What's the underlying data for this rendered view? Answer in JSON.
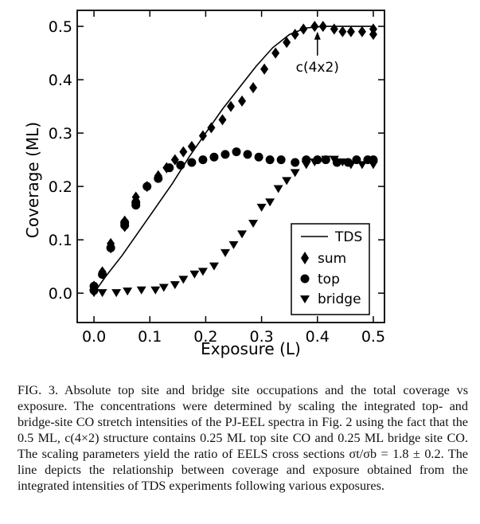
{
  "chart_data": {
    "type": "scatter",
    "title": "",
    "xlabel": "Exposure (L)",
    "ylabel": "Coverage (ML)",
    "xlim": [
      -0.03,
      0.52
    ],
    "ylim": [
      -0.055,
      0.53
    ],
    "xticks": [
      0.0,
      0.1,
      0.2,
      0.3,
      0.4,
      0.5
    ],
    "xtick_labels": [
      "0.0",
      "0.1",
      "0.2",
      "0.3",
      "0.4",
      "0.5"
    ],
    "yticks": [
      0.0,
      0.1,
      0.2,
      0.3,
      0.4,
      0.5
    ],
    "ytick_labels": [
      "0.0",
      "0.1",
      "0.2",
      "0.3",
      "0.4",
      "0.5"
    ],
    "grid": false,
    "legend_position": "bottom-right",
    "series": [
      {
        "name": "TDS",
        "kind": "line",
        "x": [
          0.0,
          0.02,
          0.05,
          0.08,
          0.11,
          0.14,
          0.17,
          0.2,
          0.23,
          0.26,
          0.29,
          0.32,
          0.35,
          0.38,
          0.41,
          0.44,
          0.47,
          0.5
        ],
        "y": [
          0.0,
          0.03,
          0.07,
          0.115,
          0.16,
          0.205,
          0.255,
          0.3,
          0.345,
          0.385,
          0.425,
          0.46,
          0.485,
          0.497,
          0.5,
          0.5,
          0.5,
          0.5
        ]
      },
      {
        "name": "sum",
        "kind": "diamond",
        "x": [
          0.0,
          0.0,
          0.015,
          0.03,
          0.03,
          0.055,
          0.055,
          0.075,
          0.075,
          0.095,
          0.115,
          0.13,
          0.145,
          0.16,
          0.175,
          0.195,
          0.21,
          0.23,
          0.245,
          0.265,
          0.285,
          0.305,
          0.325,
          0.345,
          0.36,
          0.375,
          0.395,
          0.41,
          0.43,
          0.445,
          0.46,
          0.48,
          0.5,
          0.5
        ],
        "y": [
          0.005,
          0.013,
          0.04,
          0.085,
          0.093,
          0.125,
          0.135,
          0.17,
          0.18,
          0.2,
          0.22,
          0.235,
          0.25,
          0.265,
          0.275,
          0.295,
          0.31,
          0.325,
          0.35,
          0.36,
          0.385,
          0.42,
          0.45,
          0.47,
          0.485,
          0.495,
          0.5,
          0.5,
          0.495,
          0.49,
          0.49,
          0.49,
          0.485,
          0.495
        ]
      },
      {
        "name": "top",
        "kind": "circle",
        "x": [
          0.0,
          0.0,
          0.015,
          0.03,
          0.055,
          0.055,
          0.075,
          0.075,
          0.095,
          0.115,
          0.135,
          0.155,
          0.175,
          0.195,
          0.215,
          0.235,
          0.255,
          0.275,
          0.295,
          0.315,
          0.335,
          0.36,
          0.38,
          0.4,
          0.415,
          0.435,
          0.455,
          0.47,
          0.49,
          0.5
        ],
        "y": [
          0.005,
          0.013,
          0.035,
          0.085,
          0.127,
          0.132,
          0.165,
          0.17,
          0.2,
          0.215,
          0.235,
          0.24,
          0.245,
          0.25,
          0.255,
          0.26,
          0.265,
          0.26,
          0.255,
          0.25,
          0.25,
          0.245,
          0.25,
          0.25,
          0.25,
          0.245,
          0.245,
          0.25,
          0.25,
          0.25
        ]
      },
      {
        "name": "bridge",
        "kind": "triangle-down",
        "x": [
          0.0,
          0.015,
          0.04,
          0.06,
          0.085,
          0.11,
          0.125,
          0.145,
          0.16,
          0.18,
          0.195,
          0.215,
          0.235,
          0.25,
          0.265,
          0.285,
          0.3,
          0.315,
          0.33,
          0.345,
          0.36,
          0.38,
          0.395,
          0.415,
          0.43,
          0.445,
          0.46,
          0.48,
          0.5
        ],
        "y": [
          0.0,
          0.0,
          0.0,
          0.003,
          0.005,
          0.005,
          0.01,
          0.015,
          0.025,
          0.035,
          0.04,
          0.05,
          0.075,
          0.09,
          0.11,
          0.13,
          0.16,
          0.17,
          0.195,
          0.21,
          0.225,
          0.24,
          0.245,
          0.25,
          0.25,
          0.245,
          0.24,
          0.24,
          0.24
        ]
      }
    ],
    "annotation": {
      "text": "c(4x2)",
      "x": 0.4,
      "y": 0.49
    }
  },
  "caption": "FIG. 3. Absolute top site and bridge site occupations and the total coverage vs exposure. The concentrations were determined by scaling the integrated top- and bridge-site CO stretch intensities of the PJ-EEL spectra in Fig. 2 using the fact that the 0.5 ML, c(4×2) structure contains 0.25 ML top site CO and 0.25 ML bridge site CO. The scaling parameters yield the ratio of EELS cross sections σt/σb = 1.8 ± 0.2. The line depicts the relationship between coverage and exposure obtained from the integrated intensities of TDS experiments following various exposures."
}
